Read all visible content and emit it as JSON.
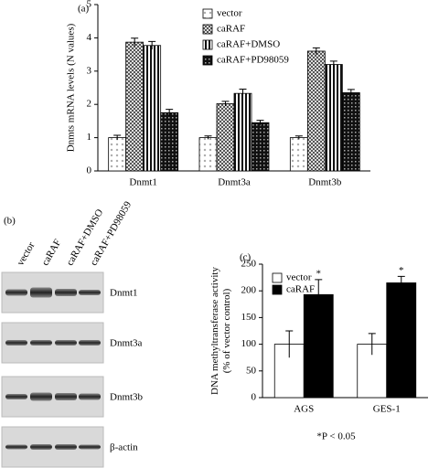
{
  "chart_data": [
    {
      "type": "bar",
      "panel": "(a)",
      "ylabel": [
        "Dnmts mRNA levels (N values)"
      ],
      "categories": [
        "Dnmt1",
        "Dnmt3a",
        "Dnmt3b"
      ],
      "series": [
        {
          "name": "vector",
          "color": "#ffffff",
          "pattern": "dots",
          "values": [
            1.0,
            1.0,
            1.0
          ],
          "errors": [
            0.07,
            0.05,
            0.05
          ]
        },
        {
          "name": "caRAF",
          "color": "#888888",
          "pattern": "checker",
          "values": [
            3.87,
            2.02,
            3.6
          ],
          "errors": [
            0.12,
            0.07,
            0.1
          ]
        },
        {
          "name": "caRAF+DMSO",
          "color": "#ffffff",
          "pattern": "stripes",
          "values": [
            3.77,
            2.33,
            3.2
          ],
          "errors": [
            0.12,
            0.13,
            0.1
          ]
        },
        {
          "name": "caRAF+PD98059",
          "color": "#222222",
          "pattern": "darkchecker",
          "values": [
            1.75,
            1.45,
            2.35
          ],
          "errors": [
            0.1,
            0.07,
            0.1
          ]
        }
      ],
      "ylim": [
        0,
        5
      ],
      "yticks": [
        0,
        1,
        2,
        3,
        4,
        5
      ]
    },
    {
      "type": "bar",
      "panel": "(c)",
      "ylabel": [
        "DNA methyltransferase activity",
        "(% of vector control)"
      ],
      "categories": [
        "AGS",
        "GES-1"
      ],
      "series": [
        {
          "name": "vector",
          "color": "#ffffff",
          "pattern": "solid",
          "values": [
            100,
            100
          ],
          "errors": [
            25,
            20
          ]
        },
        {
          "name": "caRAF",
          "color": "#000000",
          "pattern": "solid",
          "values": [
            193,
            215
          ],
          "errors": [
            28,
            12
          ],
          "annotations": [
            "*",
            "*"
          ]
        }
      ],
      "ylim": [
        0,
        250
      ],
      "yticks": [
        0,
        50,
        100,
        150,
        200,
        250
      ],
      "note": "*P < 0.05"
    }
  ],
  "blot": {
    "panel": "(b)",
    "lanes": [
      "vector",
      "caRAF",
      "caRAF+DMSO",
      "caRAF+PD98059"
    ],
    "rows": [
      "Dnmt1",
      "Dnmt3a",
      "Dnmt3b",
      "β-actin"
    ]
  }
}
